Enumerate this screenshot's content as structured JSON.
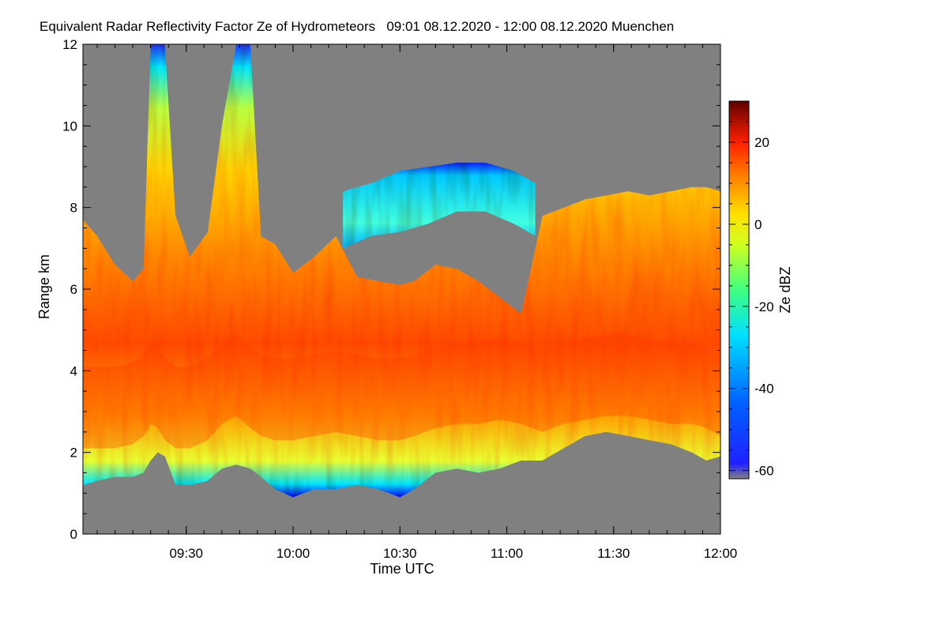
{
  "chart_data": {
    "type": "heatmap",
    "title": "Equivalent Radar Reflectivity Factor Ze of Hydrometeors   09:01 08.12.2020 - 12:00 08.12.2020 Muenchen",
    "xlabel": "Time UTC",
    "ylabel": "Range km",
    "colorbar_label": "Ze dBZ",
    "x_range_minutes_utc": [
      541,
      720
    ],
    "xticks": [
      {
        "label": "09:30",
        "minute": 570
      },
      {
        "label": "10:00",
        "minute": 600
      },
      {
        "label": "10:30",
        "minute": 630
      },
      {
        "label": "11:00",
        "minute": 660
      },
      {
        "label": "11:30",
        "minute": 690
      },
      {
        "label": "12:00",
        "minute": 720
      }
    ],
    "ylim": [
      0,
      12
    ],
    "yticks": [
      {
        "label": "0",
        "value": 0
      },
      {
        "label": "2",
        "value": 2
      },
      {
        "label": "4",
        "value": 4
      },
      {
        "label": "6",
        "value": 6
      },
      {
        "label": "8",
        "value": 8
      },
      {
        "label": "10",
        "value": 10
      },
      {
        "label": "12",
        "value": 12
      }
    ],
    "colorbar_range": [
      -62,
      30
    ],
    "colorbar_ticks": [
      {
        "label": "20",
        "value": 20
      },
      {
        "label": "0",
        "value": 0
      },
      {
        "label": "-20",
        "value": -20
      },
      {
        "label": "-40",
        "value": -40
      },
      {
        "label": "-60",
        "value": -60
      }
    ],
    "no_signal_color": "#808080",
    "colormap": [
      "#4a0000",
      "#b00000",
      "#ff1a00",
      "#ff7a00",
      "#ffd700",
      "#c8ff30",
      "#00ffff",
      "#0080ff",
      "#0000c0",
      "#808080"
    ],
    "cloud_profile": [
      {
        "minute": 541,
        "base": 1.2,
        "top": 7.7,
        "core": 3.0
      },
      {
        "minute": 545,
        "base": 1.3,
        "top": 7.3,
        "core": 3.0
      },
      {
        "minute": 550,
        "base": 1.4,
        "top": 6.6,
        "core": 3.0
      },
      {
        "minute": 555,
        "base": 1.4,
        "top": 6.2,
        "core": 3.1
      },
      {
        "minute": 558,
        "base": 1.5,
        "top": 6.5,
        "core": 3.3
      },
      {
        "minute": 560,
        "base": 1.8,
        "top": 12.0,
        "core": 3.6
      },
      {
        "minute": 562,
        "base": 2.0,
        "top": 12.0,
        "core": 3.5
      },
      {
        "minute": 564,
        "base": 1.9,
        "top": 12.0,
        "core": 3.2
      },
      {
        "minute": 567,
        "base": 1.2,
        "top": 7.8,
        "core": 3.0
      },
      {
        "minute": 571,
        "base": 1.2,
        "top": 6.8,
        "core": 3.0
      },
      {
        "minute": 576,
        "base": 1.3,
        "top": 7.4,
        "core": 3.2
      },
      {
        "minute": 580,
        "base": 1.6,
        "top": 10.0,
        "core": 3.6
      },
      {
        "minute": 584,
        "base": 1.7,
        "top": 12.0,
        "core": 3.8
      },
      {
        "minute": 588,
        "base": 1.6,
        "top": 12.0,
        "core": 3.5
      },
      {
        "minute": 591,
        "base": 1.4,
        "top": 7.3,
        "core": 3.3
      },
      {
        "minute": 595,
        "base": 1.1,
        "top": 7.1,
        "core": 3.2
      },
      {
        "minute": 600,
        "base": 0.9,
        "top": 6.4,
        "core": 3.2
      },
      {
        "minute": 606,
        "base": 1.1,
        "top": 6.8,
        "core": 3.3
      },
      {
        "minute": 612,
        "base": 1.1,
        "top": 7.3,
        "core": 3.4
      },
      {
        "minute": 618,
        "base": 1.2,
        "top": 6.3,
        "core": 3.3
      },
      {
        "minute": 624,
        "base": 1.1,
        "top": 6.2,
        "core": 3.2
      },
      {
        "minute": 630,
        "base": 0.9,
        "top": 6.1,
        "core": 3.2
      },
      {
        "minute": 634,
        "base": 1.1,
        "top": 6.2,
        "core": 3.3
      },
      {
        "minute": 640,
        "base": 1.5,
        "top": 6.6,
        "core": 3.5
      },
      {
        "minute": 646,
        "base": 1.6,
        "top": 6.5,
        "core": 3.6
      },
      {
        "minute": 652,
        "base": 1.5,
        "top": 6.2,
        "core": 3.6
      },
      {
        "minute": 658,
        "base": 1.6,
        "top": 5.8,
        "core": 3.7
      },
      {
        "minute": 664,
        "base": 1.8,
        "top": 5.4,
        "core": 3.6
      },
      {
        "minute": 670,
        "base": 1.8,
        "top": 7.8,
        "core": 3.4
      },
      {
        "minute": 676,
        "base": 2.1,
        "top": 8.0,
        "core": 3.6
      },
      {
        "minute": 682,
        "base": 2.4,
        "top": 8.2,
        "core": 3.7
      },
      {
        "minute": 688,
        "base": 2.5,
        "top": 8.3,
        "core": 3.8
      },
      {
        "minute": 694,
        "base": 2.4,
        "top": 8.4,
        "core": 3.8
      },
      {
        "minute": 700,
        "base": 2.3,
        "top": 8.3,
        "core": 3.7
      },
      {
        "minute": 706,
        "base": 2.2,
        "top": 8.4,
        "core": 3.6
      },
      {
        "minute": 712,
        "base": 2.0,
        "top": 8.5,
        "core": 3.6
      },
      {
        "minute": 716,
        "base": 1.8,
        "top": 8.5,
        "core": 3.5
      },
      {
        "minute": 720,
        "base": 1.9,
        "top": 8.4,
        "core": 3.3
      }
    ],
    "upper_cirrus": [
      {
        "minute": 614,
        "base": 7.0,
        "top": 8.4
      },
      {
        "minute": 622,
        "base": 7.3,
        "top": 8.6
      },
      {
        "minute": 630,
        "base": 7.4,
        "top": 8.9
      },
      {
        "minute": 638,
        "base": 7.6,
        "top": 9.0
      },
      {
        "minute": 646,
        "base": 7.9,
        "top": 9.1
      },
      {
        "minute": 654,
        "base": 7.9,
        "top": 9.1
      },
      {
        "minute": 662,
        "base": 7.6,
        "top": 8.9
      },
      {
        "minute": 668,
        "base": 7.3,
        "top": 8.6
      }
    ]
  }
}
